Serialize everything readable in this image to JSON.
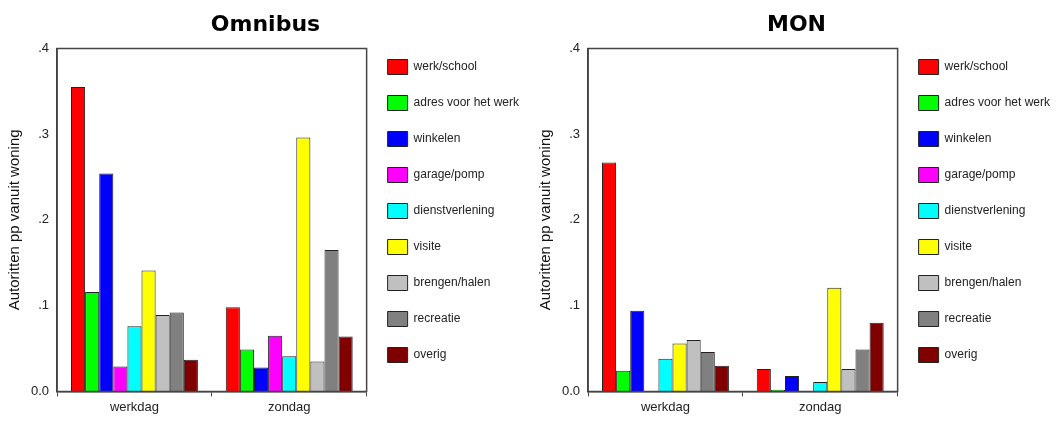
{
  "chart_data": [
    {
      "type": "bar",
      "title": "Omnibus",
      "ylabel": "Autoritten pp vanuit woning",
      "categories": [
        "werkdag",
        "zondag"
      ],
      "series": [
        {
          "name": "werk/school",
          "color": "#ff0000",
          "values": [
            0.355,
            0.098
          ]
        },
        {
          "name": "adres voor het werk",
          "color": "#00ff00",
          "values": [
            0.116,
            0.049
          ]
        },
        {
          "name": "winkelen",
          "color": "#0000ff",
          "values": [
            0.254,
            0.028
          ]
        },
        {
          "name": "garage/pomp",
          "color": "#ff00ff",
          "values": [
            0.029,
            0.065
          ]
        },
        {
          "name": "dienstverlening",
          "color": "#00ffff",
          "values": [
            0.076,
            0.041
          ]
        },
        {
          "name": "visite",
          "color": "#ffff00",
          "values": [
            0.141,
            0.296
          ]
        },
        {
          "name": "brengen/halen",
          "color": "#c0c0c0",
          "values": [
            0.089,
            0.035
          ]
        },
        {
          "name": "recreatie",
          "color": "#808080",
          "values": [
            0.092,
            0.165
          ]
        },
        {
          "name": "overig",
          "color": "#800000",
          "values": [
            0.037,
            0.064
          ]
        }
      ],
      "ylim": [
        0,
        0.4
      ],
      "yticks": [
        {
          "value": 0,
          "label": "0.0"
        },
        {
          "value": 0.1,
          "label": ".1"
        },
        {
          "value": 0.2,
          "label": ".2"
        },
        {
          "value": 0.3,
          "label": ".3"
        },
        {
          "value": 0.4,
          "label": ".4"
        }
      ],
      "grid": false,
      "legend": "right"
    },
    {
      "type": "bar",
      "title": "MON",
      "ylabel": "Autoritten pp vanuit woning",
      "categories": [
        "werkdag",
        "zondag"
      ],
      "series": [
        {
          "name": "werk/school",
          "color": "#ff0000",
          "values": [
            0.267,
            0.026
          ]
        },
        {
          "name": "adres voor het werk",
          "color": "#00ff00",
          "values": [
            0.024,
            0.002
          ]
        },
        {
          "name": "winkelen",
          "color": "#0000ff",
          "values": [
            0.094,
            0.018
          ]
        },
        {
          "name": "garage/pomp",
          "color": "#ff00ff",
          "values": [
            null,
            null
          ]
        },
        {
          "name": "dienstverlening",
          "color": "#00ffff",
          "values": [
            0.038,
            0.011
          ]
        },
        {
          "name": "visite",
          "color": "#ffff00",
          "values": [
            0.056,
            0.121
          ]
        },
        {
          "name": "brengen/halen",
          "color": "#c0c0c0",
          "values": [
            0.06,
            0.026
          ]
        },
        {
          "name": "recreatie",
          "color": "#808080",
          "values": [
            0.046,
            0.049
          ]
        },
        {
          "name": "overig",
          "color": "#800000",
          "values": [
            0.03,
            0.08
          ]
        }
      ],
      "ylim": [
        0,
        0.4
      ],
      "yticks": [
        {
          "value": 0,
          "label": "0.0"
        },
        {
          "value": 0.1,
          "label": ".1"
        },
        {
          "value": 0.2,
          "label": ".2"
        },
        {
          "value": 0.3,
          "label": ".3"
        },
        {
          "value": 0.4,
          "label": ".4"
        }
      ],
      "grid": false,
      "legend": "right"
    }
  ]
}
